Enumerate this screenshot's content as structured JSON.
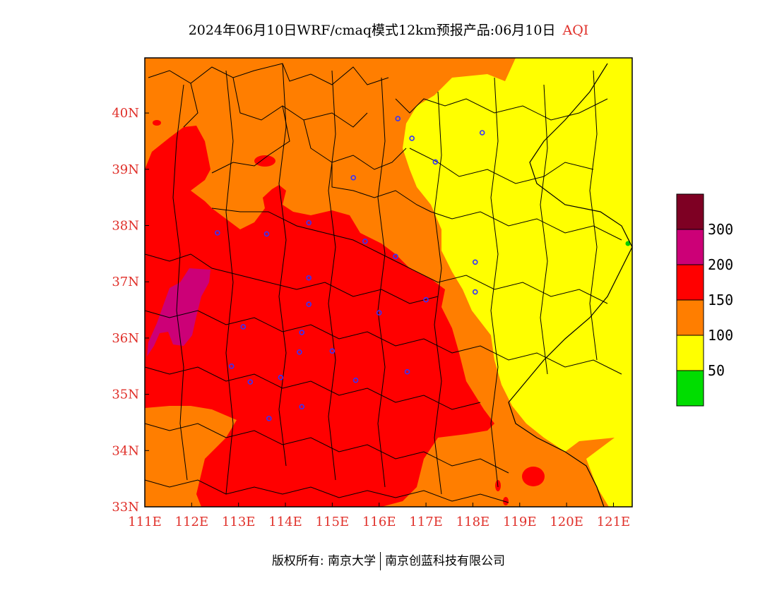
{
  "title": {
    "main": "2024年06月10日WRF/cmaq模式12km预报产品:06月10日",
    "variable": "AQI"
  },
  "map": {
    "lon_labels": [
      "111E",
      "112E",
      "113E",
      "114E",
      "115E",
      "116E",
      "117E",
      "118E",
      "119E",
      "120E",
      "121E"
    ],
    "lat_labels": [
      "33N",
      "34N",
      "35N",
      "36N",
      "37N",
      "38N",
      "39N",
      "40N"
    ],
    "lon_range": [
      111,
      121.4
    ],
    "lat_range": [
      33,
      40.98
    ]
  },
  "legend": {
    "levels": [
      {
        "label": "",
        "color": "#00dd00"
      },
      {
        "label": "50",
        "color": "#ffff00"
      },
      {
        "label": "100",
        "color": "#ff7e00"
      },
      {
        "label": "150",
        "color": "#ff0000"
      },
      {
        "label": "200",
        "color": "#cc0077"
      },
      {
        "label": "300",
        "color": "#7e0023"
      }
    ]
  },
  "stations": [
    [
      116.4,
      39.9
    ],
    [
      116.7,
      39.55
    ],
    [
      117.2,
      39.13
    ],
    [
      118.2,
      39.65
    ],
    [
      114.5,
      38.05
    ],
    [
      112.55,
      37.87
    ],
    [
      113.6,
      37.85
    ],
    [
      115.45,
      38.85
    ],
    [
      115.7,
      37.72
    ],
    [
      116.35,
      37.45
    ],
    [
      114.5,
      37.07
    ],
    [
      114.5,
      36.6
    ],
    [
      116.0,
      36.45
    ],
    [
      117.0,
      36.68
    ],
    [
      118.05,
      37.35
    ],
    [
      118.05,
      36.82
    ],
    [
      113.1,
      36.2
    ],
    [
      114.35,
      36.1
    ],
    [
      114.3,
      35.75
    ],
    [
      115.0,
      35.77
    ],
    [
      112.85,
      35.5
    ],
    [
      113.25,
      35.22
    ],
    [
      113.9,
      35.3
    ],
    [
      115.5,
      35.25
    ],
    [
      116.6,
      35.4
    ],
    [
      114.35,
      34.78
    ],
    [
      113.65,
      34.57
    ]
  ],
  "footer": {
    "copyright": "版权所有: 南京大学",
    "company": "南京创蓝科技有限公司"
  }
}
